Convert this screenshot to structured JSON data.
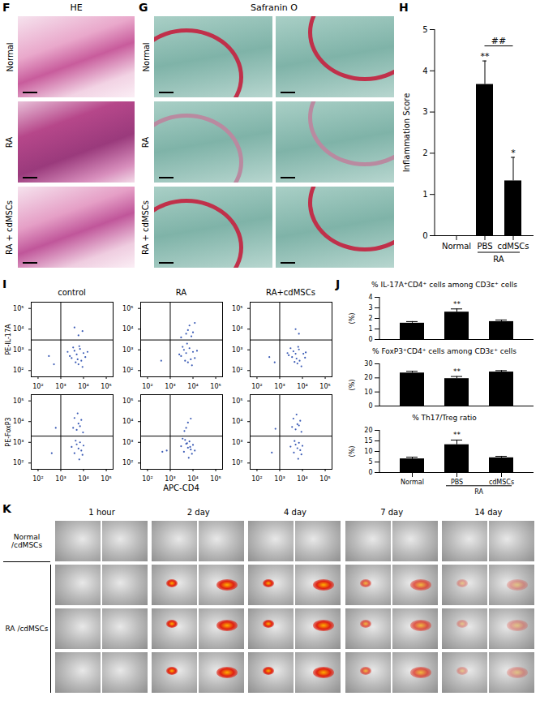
{
  "figure": {
    "F": {
      "panel": "F",
      "title": "HE",
      "rows": [
        "Normal",
        "RA",
        "RA + cdMSCs"
      ]
    },
    "G": {
      "panel": "G",
      "title": "Safranin O",
      "rows": [
        "Normal",
        "RA",
        "RA + cdMSCs"
      ]
    },
    "I": {
      "panel": "I",
      "columns": [
        "control",
        "RA",
        "RA+cdMSCs"
      ],
      "xlabel": "APC-CD4"
    },
    "J": {
      "panel": "J"
    },
    "K": {
      "panel": "K",
      "columns": [
        "1 hour",
        "2 day",
        "4 day",
        "7 day",
        "14 day"
      ],
      "rows": [
        "Normal /cdMSCs",
        "RA /cdMSCs"
      ]
    }
  },
  "chart_data": [
    {
      "type": "bar",
      "panel": "H",
      "ylabel": "Inflammation Score",
      "categories": [
        "Normal",
        "PBS",
        "cdMSCs"
      ],
      "values": [
        0,
        3.67,
        1.33
      ],
      "errors": [
        0,
        0.57,
        0.57
      ],
      "color": "#000000",
      "ylim": [
        0,
        5
      ],
      "yticks": [
        0,
        1,
        2,
        3,
        4,
        5
      ],
      "group": {
        "label": "RA",
        "members": [
          "PBS",
          "cdMSCs"
        ]
      },
      "annotations": [
        {
          "text": "**",
          "at": 1
        },
        {
          "text": "*",
          "at": 2
        },
        {
          "text": "##",
          "from": 1,
          "to": 2
        }
      ]
    },
    {
      "type": "scatter",
      "ylabel": "PE-IL-17A",
      "x": [
        3000,
        5000,
        8000,
        4000,
        6000,
        10000,
        2500,
        7000,
        12000,
        4500,
        9000,
        3500,
        15000,
        5500,
        2000,
        6500,
        300,
        500,
        6000,
        9000,
        4000
      ],
      "y": [
        400,
        600,
        300,
        900,
        200,
        700,
        500,
        1100,
        450,
        250,
        150,
        1300,
        800,
        350,
        800,
        1500,
        500,
        200,
        5000,
        8000,
        12000
      ],
      "color": "#3b5bb5",
      "log": true,
      "xlim": [
        50,
        200000
      ],
      "ylim": [
        50,
        200000
      ],
      "xticks": [
        {
          "value": 100,
          "label": "10²"
        },
        {
          "value": 1000,
          "label": "10³"
        },
        {
          "value": 10000,
          "label": "10⁴"
        },
        {
          "value": 100000,
          "label": "10⁵"
        }
      ],
      "yticks": [
        {
          "value": 100,
          "label": "10²"
        },
        {
          "value": 1000,
          "label": "10³"
        },
        {
          "value": 10000,
          "label": "10⁴"
        },
        {
          "value": 100000,
          "label": "10⁵"
        }
      ],
      "gates": {
        "x": 1000,
        "y": 3000
      }
    },
    {
      "type": "scatter",
      "x": [
        3000,
        5000,
        8000,
        4000,
        6000,
        10000,
        2500,
        7000,
        12000,
        4500,
        9000,
        3500,
        15000,
        5500,
        400,
        5000,
        7000,
        3000,
        10000,
        12000,
        6000,
        8500
      ],
      "y": [
        500,
        700,
        350,
        1000,
        250,
        800,
        600,
        1200,
        400,
        300,
        180,
        1400,
        900,
        2000,
        300,
        6000,
        15000,
        4000,
        7000,
        20000,
        9000,
        4500
      ],
      "color": "#3b5bb5",
      "log": true,
      "xlim": [
        50,
        200000
      ],
      "ylim": [
        50,
        200000
      ],
      "xticks": [
        {
          "value": 100,
          "label": "10²"
        },
        {
          "value": 1000,
          "label": "10³"
        },
        {
          "value": 10000,
          "label": "10⁴"
        },
        {
          "value": 100000,
          "label": "10⁵"
        }
      ],
      "yticks": [
        {
          "value": 100,
          "label": "10²"
        },
        {
          "value": 1000,
          "label": "10³"
        },
        {
          "value": 10000,
          "label": "10⁴"
        },
        {
          "value": 100000,
          "label": "10⁵"
        }
      ],
      "gates": {
        "x": 1000,
        "y": 3000
      }
    },
    {
      "type": "scatter",
      "x": [
        3500,
        5000,
        7500,
        4000,
        6000,
        11000,
        2500,
        7000,
        13000,
        4500,
        9000,
        3000,
        14000,
        5500,
        2200,
        6500,
        350,
        600,
        7000,
        5000
      ],
      "y": [
        450,
        650,
        300,
        850,
        220,
        650,
        550,
        1050,
        420,
        260,
        160,
        1200,
        750,
        380,
        700,
        1400,
        450,
        250,
        6000,
        10000
      ],
      "color": "#3b5bb5",
      "log": true,
      "xlim": [
        50,
        200000
      ],
      "ylim": [
        50,
        200000
      ],
      "xticks": [
        {
          "value": 100,
          "label": "10²"
        },
        {
          "value": 1000,
          "label": "10³"
        },
        {
          "value": 10000,
          "label": "10⁴"
        },
        {
          "value": 100000,
          "label": "10⁵"
        }
      ],
      "yticks": [
        {
          "value": 100,
          "label": "10²"
        },
        {
          "value": 1000,
          "label": "10³"
        },
        {
          "value": 10000,
          "label": "10⁴"
        },
        {
          "value": 100000,
          "label": "10⁵"
        }
      ],
      "gates": {
        "x": 1000,
        "y": 3000
      }
    },
    {
      "type": "scatter",
      "ylabel": "PE-FoxP3",
      "x": [
        4000,
        6000,
        5000,
        8000,
        3000,
        7000,
        9000,
        4500,
        10000,
        6500,
        5000,
        6000,
        4000,
        7000,
        8000,
        5500,
        3500,
        400,
        600,
        9500
      ],
      "y": [
        300,
        500,
        800,
        400,
        600,
        1000,
        250,
        1200,
        700,
        150,
        4000,
        8000,
        15000,
        6000,
        12000,
        25000,
        5000,
        300,
        5000,
        3000
      ],
      "color": "#3b5bb5",
      "log": true,
      "xlim": [
        50,
        200000
      ],
      "ylim": [
        50,
        200000
      ],
      "xticks": [
        {
          "value": 100,
          "label": "10²"
        },
        {
          "value": 1000,
          "label": "10³"
        },
        {
          "value": 10000,
          "label": "10⁴"
        },
        {
          "value": 100000,
          "label": "10⁵"
        }
      ],
      "yticks": [
        {
          "value": 100,
          "label": "10²"
        },
        {
          "value": 1000,
          "label": "10³"
        },
        {
          "value": 10000,
          "label": "10⁴"
        },
        {
          "value": 100000,
          "label": "10⁵"
        }
      ],
      "gates": {
        "x": 1000,
        "y": 2000
      }
    },
    {
      "type": "scatter",
      "x": [
        4000,
        6000,
        5000,
        8000,
        3000,
        7000,
        9000,
        4500,
        10000,
        6500,
        5500,
        7500,
        3500,
        12000,
        5000,
        6000,
        8000,
        450,
        700,
        4200
      ],
      "y": [
        350,
        550,
        850,
        450,
        650,
        1100,
        280,
        1300,
        750,
        180,
        900,
        600,
        1500,
        400,
        5000,
        9000,
        14000,
        350,
        400,
        3500
      ],
      "color": "#3b5bb5",
      "log": true,
      "xlim": [
        50,
        200000
      ],
      "ylim": [
        50,
        200000
      ],
      "xticks": [
        {
          "value": 100,
          "label": "10²"
        },
        {
          "value": 1000,
          "label": "10³"
        },
        {
          "value": 10000,
          "label": "10⁴"
        },
        {
          "value": 100000,
          "label": "10⁵"
        }
      ],
      "yticks": [
        {
          "value": 100,
          "label": "10²"
        },
        {
          "value": 1000,
          "label": "10³"
        },
        {
          "value": 10000,
          "label": "10⁴"
        },
        {
          "value": 100000,
          "label": "10⁵"
        }
      ],
      "gates": {
        "x": 1000,
        "y": 2000
      }
    },
    {
      "type": "scatter",
      "x": [
        4200,
        6000,
        5000,
        8000,
        3000,
        7000,
        9000,
        4500,
        10000,
        6500,
        5000,
        6000,
        4000,
        7000,
        8000,
        5500,
        3500,
        450,
        650,
        9000
      ],
      "y": [
        320,
        520,
        780,
        420,
        620,
        950,
        260,
        1150,
        680,
        160,
        4200,
        7500,
        14000,
        6500,
        11000,
        22000,
        5500,
        320,
        4500,
        3200
      ],
      "color": "#3b5bb5",
      "log": true,
      "xlim": [
        50,
        200000
      ],
      "ylim": [
        50,
        200000
      ],
      "xticks": [
        {
          "value": 100,
          "label": "10²"
        },
        {
          "value": 1000,
          "label": "10³"
        },
        {
          "value": 10000,
          "label": "10⁴"
        },
        {
          "value": 100000,
          "label": "10⁵"
        }
      ],
      "yticks": [
        {
          "value": 100,
          "label": "10²"
        },
        {
          "value": 1000,
          "label": "10³"
        },
        {
          "value": 10000,
          "label": "10⁴"
        },
        {
          "value": 100000,
          "label": "10⁵"
        }
      ],
      "gates": {
        "x": 1000,
        "y": 2000
      }
    },
    {
      "type": "bar",
      "title": "% IL-17A⁺CD4⁺ cells among CD3ε⁺ cells",
      "ylabel": "(%)",
      "categories": [
        null,
        null,
        null
      ],
      "values": [
        1.55,
        2.6,
        1.7
      ],
      "errors": [
        0.15,
        0.3,
        0.15
      ],
      "color": "#000000",
      "ylim": [
        0,
        4
      ],
      "yticks": [
        0,
        1,
        2,
        3,
        4
      ],
      "tick_labels": "y",
      "annotations": [
        {
          "text": "**",
          "at": 1
        }
      ]
    },
    {
      "type": "bar",
      "title": "% FoxP3⁺CD4⁺ cells among CD3ε⁺ cells",
      "ylabel": "(%)",
      "categories": [
        null,
        null,
        null
      ],
      "values": [
        23.5,
        19.5,
        24.2
      ],
      "errors": [
        1.2,
        1.5,
        1.0
      ],
      "color": "#000000",
      "ylim": [
        0,
        30
      ],
      "yticks": [
        0,
        10,
        20,
        30
      ],
      "tick_labels": "y",
      "annotations": [
        {
          "text": "**",
          "at": 1
        }
      ]
    },
    {
      "type": "bar",
      "title": "% Th17/Treg ratio",
      "ylabel": "(%)",
      "categories": [
        "Normal",
        "PBS",
        "cdMSCs"
      ],
      "values": [
        6.5,
        13.2,
        7.0
      ],
      "errors": [
        0.8,
        2.2,
        0.7
      ],
      "color": "#000000",
      "ylim": [
        0,
        20
      ],
      "yticks": [
        0,
        5,
        10,
        15,
        20
      ],
      "group": {
        "label": "RA",
        "members": [
          "PBS",
          "cdMSCs"
        ]
      },
      "annotations": [
        {
          "text": "**",
          "at": 1
        }
      ]
    }
  ]
}
